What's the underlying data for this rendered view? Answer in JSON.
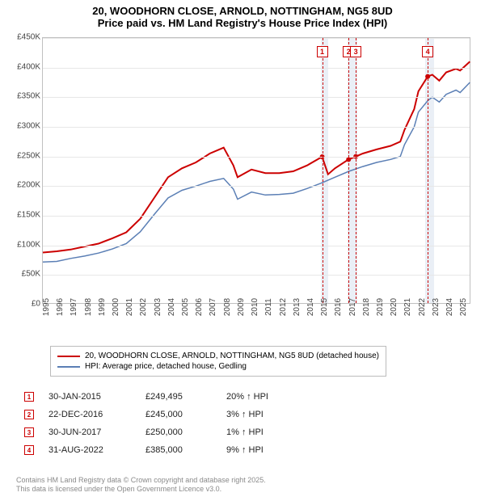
{
  "title_line1": "20, WOODHORN CLOSE, ARNOLD, NOTTINGHAM, NG5 8UD",
  "title_line2": "Price paid vs. HM Land Registry's House Price Index (HPI)",
  "chart": {
    "type": "line",
    "background_color": "#ffffff",
    "grid_color": "#e7e7e7",
    "border_color": "#c0c0c0",
    "xlim": [
      1995,
      2025.8
    ],
    "ylim": [
      0,
      450000
    ],
    "ytick_step": 50000,
    "yticks": [
      "£0",
      "£50K",
      "£100K",
      "£150K",
      "£200K",
      "£250K",
      "£300K",
      "£350K",
      "£400K",
      "£450K"
    ],
    "xticks": [
      1995,
      1996,
      1997,
      1998,
      1999,
      2000,
      2001,
      2002,
      2003,
      2004,
      2005,
      2006,
      2007,
      2008,
      2009,
      2010,
      2011,
      2012,
      2013,
      2014,
      2015,
      2016,
      2017,
      2018,
      2019,
      2020,
      2021,
      2022,
      2023,
      2024,
      2025
    ],
    "shaded_bands": [
      {
        "from": 2015.0,
        "to": 2015.5,
        "color": "#e6ecf5"
      },
      {
        "from": 2016.9,
        "to": 2017.6,
        "color": "#e6ecf5"
      },
      {
        "from": 2022.5,
        "to": 2023.1,
        "color": "#e6ecf5"
      }
    ],
    "series": [
      {
        "name": "20, WOODHORN CLOSE, ARNOLD, NOTTINGHAM, NG5 8UD (detached house)",
        "color": "#cc0000",
        "line_width": 2,
        "data": [
          [
            1995,
            88000
          ],
          [
            1996,
            90000
          ],
          [
            1997,
            93000
          ],
          [
            1998,
            98000
          ],
          [
            1999,
            103000
          ],
          [
            2000,
            112000
          ],
          [
            2001,
            122000
          ],
          [
            2002,
            145000
          ],
          [
            2003,
            180000
          ],
          [
            2004,
            215000
          ],
          [
            2005,
            230000
          ],
          [
            2006,
            240000
          ],
          [
            2007,
            255000
          ],
          [
            2008,
            265000
          ],
          [
            2008.7,
            235000
          ],
          [
            2009,
            215000
          ],
          [
            2010,
            228000
          ],
          [
            2011,
            222000
          ],
          [
            2012,
            222000
          ],
          [
            2013,
            225000
          ],
          [
            2014,
            235000
          ],
          [
            2015.08,
            249495
          ],
          [
            2015.5,
            220000
          ],
          [
            2016,
            230000
          ],
          [
            2016.98,
            245000
          ],
          [
            2017.5,
            250000
          ],
          [
            2018,
            255000
          ],
          [
            2019,
            262000
          ],
          [
            2020,
            268000
          ],
          [
            2020.7,
            275000
          ],
          [
            2021,
            295000
          ],
          [
            2021.7,
            330000
          ],
          [
            2022,
            360000
          ],
          [
            2022.67,
            385000
          ],
          [
            2023,
            388000
          ],
          [
            2023.5,
            378000
          ],
          [
            2024,
            392000
          ],
          [
            2024.7,
            398000
          ],
          [
            2025,
            395000
          ],
          [
            2025.7,
            410000
          ]
        ]
      },
      {
        "name": "HPI: Average price, detached house, Gedling",
        "color": "#5b7fb5",
        "line_width": 1.5,
        "data": [
          [
            1995,
            72000
          ],
          [
            1996,
            73000
          ],
          [
            1997,
            78000
          ],
          [
            1998,
            82000
          ],
          [
            1999,
            87000
          ],
          [
            2000,
            94000
          ],
          [
            2001,
            103000
          ],
          [
            2002,
            123000
          ],
          [
            2003,
            152000
          ],
          [
            2004,
            180000
          ],
          [
            2005,
            193000
          ],
          [
            2006,
            200000
          ],
          [
            2007,
            208000
          ],
          [
            2008,
            213000
          ],
          [
            2008.7,
            195000
          ],
          [
            2009,
            178000
          ],
          [
            2010,
            190000
          ],
          [
            2011,
            185000
          ],
          [
            2012,
            186000
          ],
          [
            2013,
            188000
          ],
          [
            2014,
            196000
          ],
          [
            2015,
            205000
          ],
          [
            2016,
            215000
          ],
          [
            2017,
            225000
          ],
          [
            2018,
            233000
          ],
          [
            2019,
            240000
          ],
          [
            2020,
            245000
          ],
          [
            2020.7,
            250000
          ],
          [
            2021,
            270000
          ],
          [
            2021.7,
            300000
          ],
          [
            2022,
            325000
          ],
          [
            2022.7,
            345000
          ],
          [
            2023,
            350000
          ],
          [
            2023.5,
            342000
          ],
          [
            2024,
            355000
          ],
          [
            2024.7,
            362000
          ],
          [
            2025,
            358000
          ],
          [
            2025.7,
            375000
          ]
        ]
      }
    ],
    "markers": [
      {
        "n": "1",
        "x": 2015.08,
        "y": 249495
      },
      {
        "n": "2",
        "x": 2016.98,
        "y": 245000
      },
      {
        "n": "3",
        "x": 2017.5,
        "y": 250000
      },
      {
        "n": "4",
        "x": 2022.67,
        "y": 385000
      }
    ],
    "marker_border_color": "#cc0000",
    "marker_top_y": 10
  },
  "legend_items": [
    {
      "color": "#cc0000",
      "label": "20, WOODHORN CLOSE, ARNOLD, NOTTINGHAM, NG5 8UD (detached house)"
    },
    {
      "color": "#5b7fb5",
      "label": "HPI: Average price, detached house, Gedling"
    }
  ],
  "sales": [
    {
      "n": "1",
      "date": "30-JAN-2015",
      "price": "£249,495",
      "pct": "20% ↑ HPI"
    },
    {
      "n": "2",
      "date": "22-DEC-2016",
      "price": "£245,000",
      "pct": "3% ↑ HPI"
    },
    {
      "n": "3",
      "date": "30-JUN-2017",
      "price": "£250,000",
      "pct": "1% ↑ HPI"
    },
    {
      "n": "4",
      "date": "31-AUG-2022",
      "price": "£385,000",
      "pct": "9% ↑ HPI"
    }
  ],
  "footer_line1": "Contains HM Land Registry data © Crown copyright and database right 2025.",
  "footer_line2": "This data is licensed under the Open Government Licence v3.0."
}
